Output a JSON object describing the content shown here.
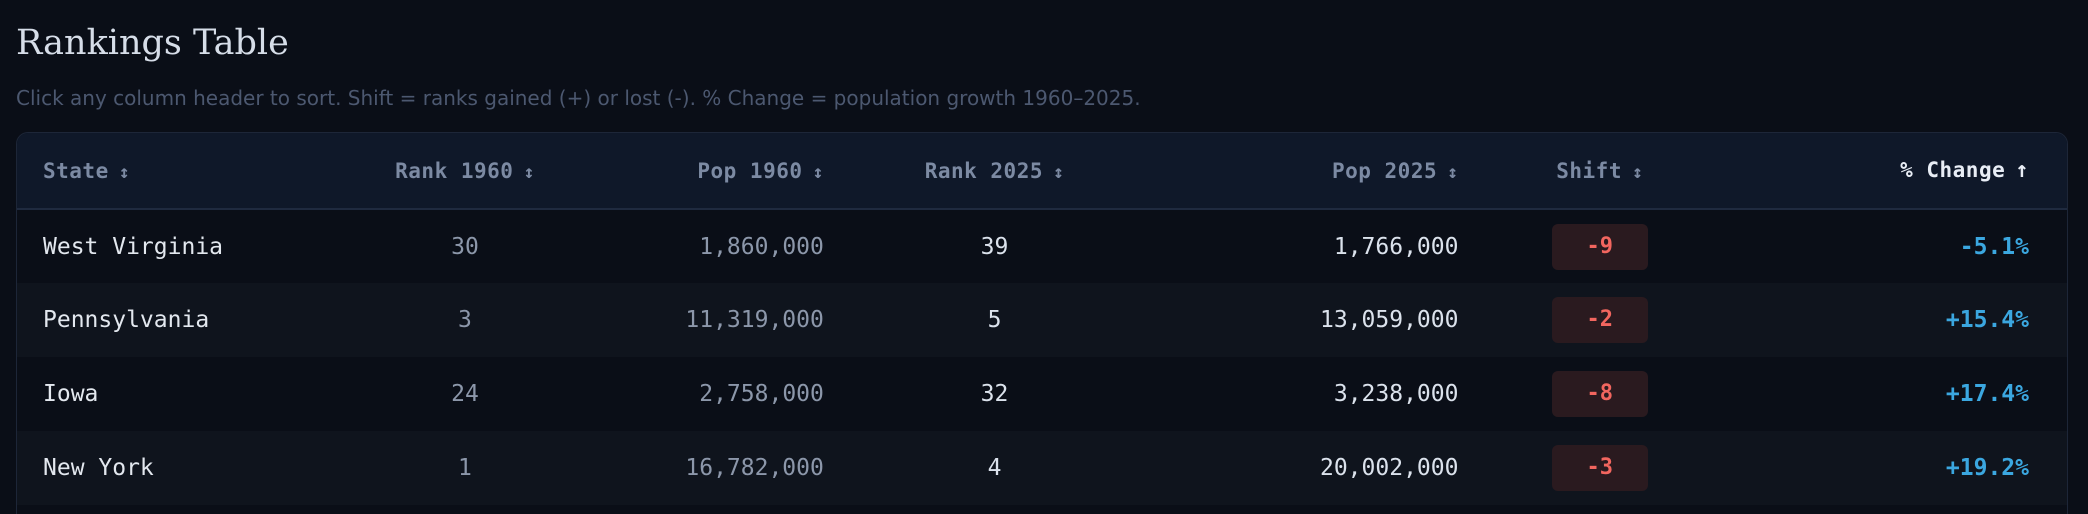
{
  "page": {
    "title": "Rankings Table",
    "subtitle": "Click any column header to sort. Shift = ranks gained (+) or lost (-). % Change = population growth 1960–2025."
  },
  "table": {
    "headers": {
      "state": "State",
      "rank_1960": "Rank 1960",
      "pop_1960": "Pop 1960",
      "rank_2025": "Rank 2025",
      "pop_2025": "Pop 2025",
      "shift": "Shift",
      "change": "% Change"
    },
    "sort_icons": {
      "inactive": "↕",
      "active": "↑"
    },
    "active_sort_column": "% Change",
    "rows": [
      {
        "state": "West Virginia",
        "rank_1960": "30",
        "pop_1960": "1,860,000",
        "rank_2025": "39",
        "pop_2025": "1,766,000",
        "shift": "-9",
        "change": "-5.1%"
      },
      {
        "state": "Pennsylvania",
        "rank_1960": "3",
        "pop_1960": "11,319,000",
        "rank_2025": "5",
        "pop_2025": "13,059,000",
        "shift": "-2",
        "change": "+15.4%"
      },
      {
        "state": "Iowa",
        "rank_1960": "24",
        "pop_1960": "2,758,000",
        "rank_2025": "32",
        "pop_2025": "3,238,000",
        "shift": "-8",
        "change": "+17.4%"
      },
      {
        "state": "New York",
        "rank_1960": "1",
        "pop_1960": "16,782,000",
        "rank_2025": "4",
        "pop_2025": "20,002,000",
        "shift": "-3",
        "change": "+19.2%"
      }
    ]
  },
  "colors": {
    "background": "#0a0e17",
    "header_background": "#0f1829",
    "negative_shift": "#f2665f",
    "change_positive": "#3ba7e0"
  }
}
